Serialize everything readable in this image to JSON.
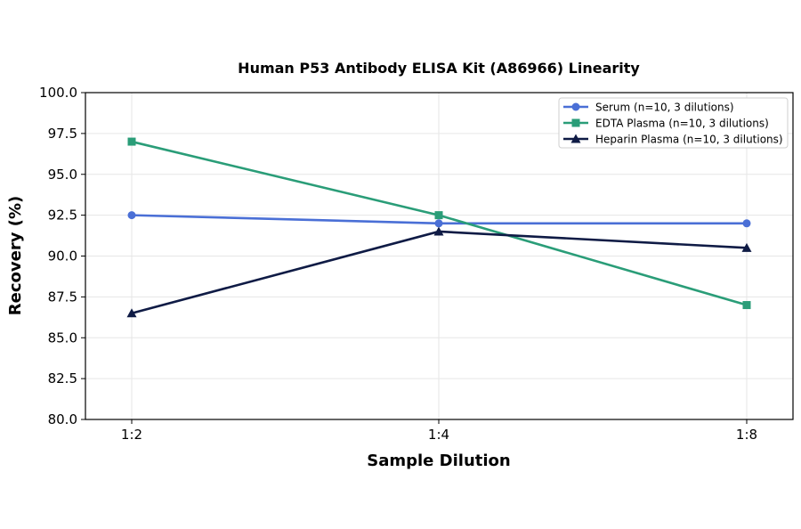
{
  "chart_data": {
    "type": "line",
    "title": "Human P53 Antibody ELISA Kit (A86966) Linearity",
    "xlabel": "Sample Dilution",
    "ylabel": "Recovery (%)",
    "categories": [
      "1:2",
      "1:4",
      "1:8"
    ],
    "ylim": [
      80.0,
      100.0
    ],
    "yticks": [
      "80.0",
      "82.5",
      "85.0",
      "87.5",
      "90.0",
      "92.5",
      "95.0",
      "97.5",
      "100.0"
    ],
    "grid": true,
    "legend_position": "top-right",
    "series": [
      {
        "name": "Serum (n=10, 3 dilutions)",
        "values": [
          92.5,
          92.0,
          92.0
        ],
        "color": "#4a6fd6",
        "marker": "circle"
      },
      {
        "name": "EDTA Plasma (n=10, 3 dilutions)",
        "values": [
          97.0,
          92.5,
          87.0
        ],
        "color": "#2a9d78",
        "marker": "square"
      },
      {
        "name": "Heparin Plasma (n=10, 3 dilutions)",
        "values": [
          86.5,
          91.5,
          90.5
        ],
        "color": "#0f1b45",
        "marker": "triangle"
      }
    ]
  }
}
